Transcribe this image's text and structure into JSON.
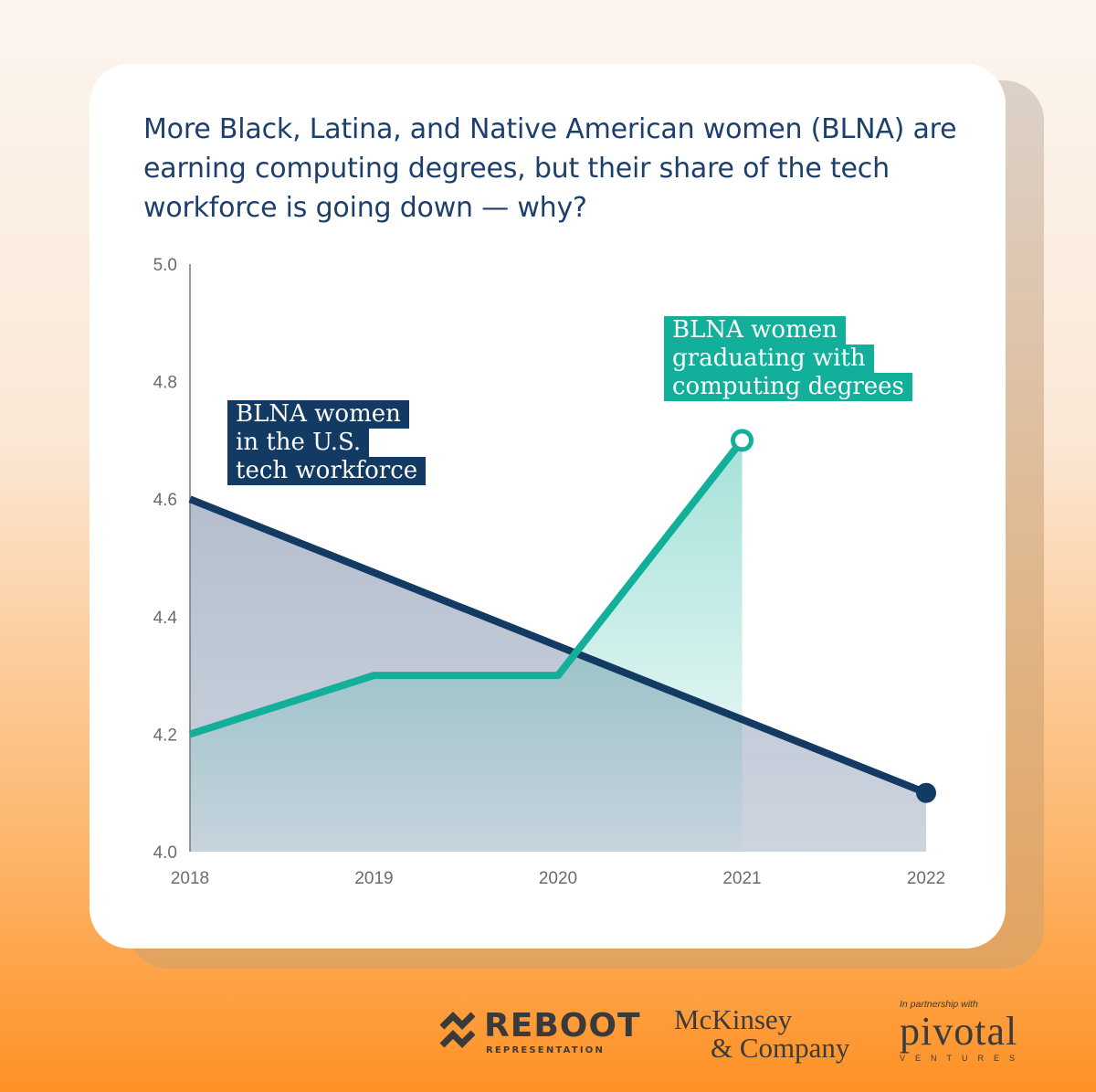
{
  "title": "More Black, Latina, and Native American women (BLNA) are earning computing degrees, but their share of the tech workforce is going down — why?",
  "colors": {
    "navy": "#123a63",
    "teal": "#12b09b"
  },
  "chart_data": {
    "type": "area",
    "x": [
      "2018",
      "2019",
      "2020",
      "2021",
      "2022"
    ],
    "ylim": [
      4.0,
      5.0
    ],
    "yticks": [
      "4.0",
      "4.2",
      "4.4",
      "4.6",
      "4.8",
      "5.0"
    ],
    "grid": false,
    "series": [
      {
        "name": "BLNA women in the U.S. tech workforce",
        "label_lines": [
          "BLNA women",
          "in the U.S.",
          "tech workforce"
        ],
        "color": "#123a63",
        "values": [
          4.6,
          null,
          null,
          null,
          4.1
        ]
      },
      {
        "name": "BLNA women graduating with computing degrees",
        "label_lines": [
          "BLNA women",
          "graduating with",
          "computing degrees"
        ],
        "color": "#12b09b",
        "values": [
          4.2,
          4.3,
          4.3,
          4.7,
          null
        ]
      }
    ]
  },
  "logos": {
    "reboot": {
      "word": "REBOOT",
      "sub": "REPRESENTATION"
    },
    "mckinsey": {
      "line1": "McKinsey",
      "line2": "& Company"
    },
    "pivotal": {
      "small": "In partnership with",
      "word": "pivotal",
      "sub": "VENTURES"
    }
  }
}
